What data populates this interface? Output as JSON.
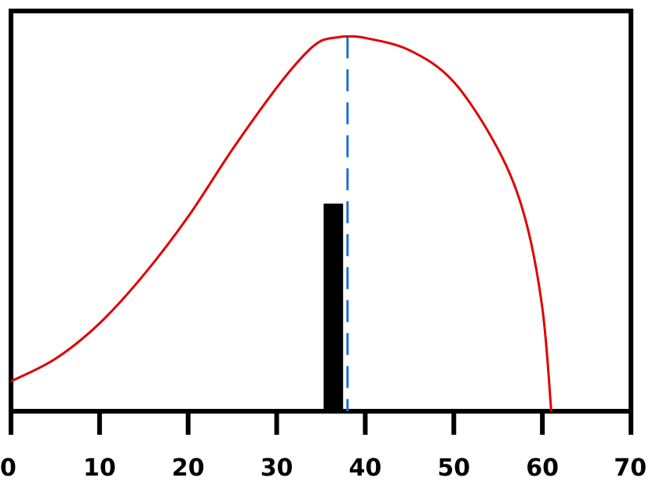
{
  "chart_data": {
    "type": "line",
    "title": "",
    "xlabel": "",
    "ylabel": "",
    "xlim": [
      0,
      70
    ],
    "ylim": [
      0,
      1.07
    ],
    "grid": false,
    "legend": "none",
    "x_ticks": [
      0,
      10,
      20,
      30,
      40,
      50,
      60,
      70
    ],
    "x_tick_labels": [
      "0",
      "10",
      "20",
      "30",
      "40",
      "50",
      "60",
      "70"
    ],
    "y_ticks_visible": false,
    "series": [
      {
        "kind": "curve",
        "color": "#e00000",
        "points": [
          [
            0,
            0.08
          ],
          [
            5,
            0.14
          ],
          [
            10,
            0.235
          ],
          [
            15,
            0.365
          ],
          [
            20,
            0.52
          ],
          [
            25,
            0.7
          ],
          [
            30,
            0.865
          ],
          [
            33,
            0.95
          ],
          [
            35,
            0.99
          ],
          [
            37,
            1.0
          ],
          [
            38,
            1.002
          ],
          [
            40,
            0.998
          ],
          [
            45,
            0.965
          ],
          [
            50,
            0.88
          ],
          [
            55,
            0.7
          ],
          [
            58,
            0.52
          ],
          [
            60,
            0.275
          ],
          [
            61,
            0.0
          ]
        ]
      },
      {
        "kind": "vertical-dashed-line",
        "color": "#1e6fd9",
        "x": 38,
        "y_top": 1.002
      },
      {
        "kind": "bar",
        "color": "#000000",
        "x_start": 35.3,
        "x_end": 37.5,
        "value": 0.555
      }
    ],
    "colors": {
      "axis": "#000000",
      "curve": "#e00000",
      "dashed_line": "#1e6fd9",
      "bar": "#000000"
    }
  }
}
